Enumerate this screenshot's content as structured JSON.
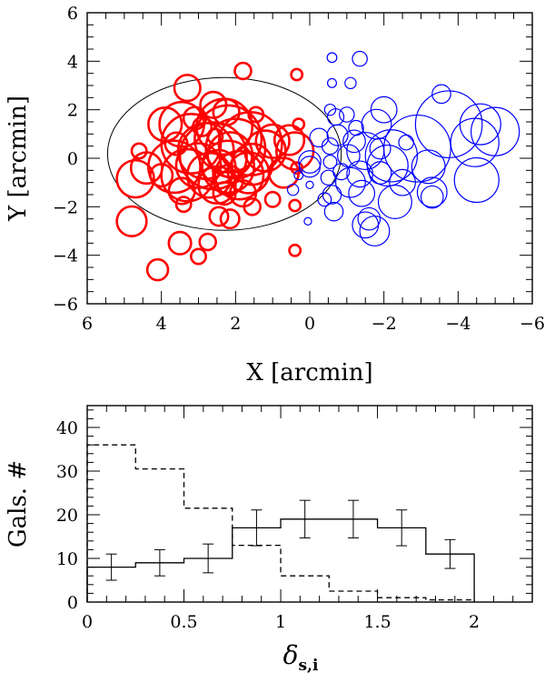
{
  "chart_data": [
    {
      "type": "scatter",
      "xlabel": "X [arcmin]",
      "ylabel": "Y [arcmin]",
      "xlim": [
        6,
        -6
      ],
      "ylim": [
        -6,
        6
      ],
      "xticks": [
        6,
        4,
        2,
        0,
        -2,
        -4,
        -6
      ],
      "yticks": [
        -6,
        -4,
        -2,
        0,
        2,
        4,
        6
      ],
      "xtick_labels": [
        "6",
        "4",
        "2",
        "0",
        "−2",
        "−4",
        "−6"
      ],
      "ytick_labels": [
        "−6",
        "−4",
        "−2",
        "0",
        "2",
        "4",
        "6"
      ],
      "reference_circle": {
        "x": 2.3,
        "y": 0.18,
        "r": 3.15
      },
      "series": [
        {
          "name": "red galaxies",
          "color": "#ff0000",
          "points": [
            [
              2.55,
              0.9,
              0.2
            ],
            [
              2.9,
              1.3,
              0.25
            ],
            [
              2.2,
              0.8,
              0.9
            ],
            [
              2.8,
              0.3,
              0.75
            ],
            [
              3.2,
              0.6,
              0.8
            ],
            [
              3.6,
              0.6,
              0.3
            ],
            [
              2.0,
              0.4,
              0.8
            ],
            [
              1.6,
              0.6,
              0.85
            ],
            [
              2.3,
              1.3,
              0.75
            ],
            [
              3.45,
              1.4,
              0.6
            ],
            [
              3.9,
              1.4,
              0.45
            ],
            [
              3.0,
              -0.3,
              0.6
            ],
            [
              2.6,
              0.1,
              0.9
            ],
            [
              3.3,
              -0.7,
              0.7
            ],
            [
              3.65,
              -0.35,
              0.7
            ],
            [
              2.7,
              -0.7,
              0.6
            ],
            [
              1.9,
              -0.7,
              0.65
            ],
            [
              1.55,
              -0.25,
              0.55
            ],
            [
              2.2,
              -0.35,
              0.7
            ],
            [
              2.5,
              -1.1,
              0.5
            ],
            [
              2.2,
              -0.9,
              0.4
            ],
            [
              1.8,
              -1.45,
              0.35
            ],
            [
              1.2,
              0.3,
              0.55
            ],
            [
              1.0,
              0.7,
              0.45
            ],
            [
              0.7,
              -0.6,
              0.4
            ],
            [
              0.4,
              0.3,
              0.5
            ],
            [
              4.0,
              -0.7,
              0.3
            ],
            [
              3.3,
              2.9,
              0.35
            ],
            [
              2.6,
              2.2,
              0.35
            ],
            [
              2.25,
              1.9,
              0.35
            ],
            [
              1.8,
              3.6,
              0.22
            ],
            [
              1.45,
              1.8,
              0.2
            ],
            [
              2.45,
              -2.4,
              0.25
            ],
            [
              2.15,
              -2.5,
              0.25
            ],
            [
              1.55,
              -2.0,
              0.22
            ],
            [
              3.4,
              -1.9,
              0.2
            ],
            [
              3.5,
              -3.5,
              0.3
            ],
            [
              2.75,
              -3.45,
              0.22
            ],
            [
              3.0,
              -4.05,
              0.2
            ],
            [
              4.1,
              -4.6,
              0.28
            ],
            [
              4.8,
              -2.6,
              0.4
            ],
            [
              4.7,
              -0.85,
              0.5
            ],
            [
              4.4,
              -0.4,
              0.42
            ],
            [
              1.0,
              -1.7,
              0.2
            ],
            [
              0.35,
              -0.4,
              0.15
            ],
            [
              0.4,
              -1.95,
              0.15
            ],
            [
              0.4,
              -3.8,
              0.15
            ],
            [
              0.35,
              3.45,
              0.15
            ],
            [
              0.3,
              1.4,
              0.15
            ],
            [
              0.55,
              0.75,
              0.4
            ],
            [
              1.65,
              -0.6,
              0.55
            ],
            [
              2.15,
              0.15,
              0.6
            ],
            [
              3.1,
              1.65,
              0.3
            ],
            [
              3.45,
              -1.35,
              0.35
            ],
            [
              2.45,
              -0.35,
              0.45
            ],
            [
              2.3,
              -1.45,
              0.3
            ],
            [
              4.6,
              0.3,
              0.2
            ]
          ]
        },
        {
          "name": "blue galaxies",
          "color": "#0000ff",
          "points": [
            [
              -0.6,
              4.15,
              0.13
            ],
            [
              -1.35,
              4.1,
              0.2
            ],
            [
              -0.6,
              3.1,
              0.12
            ],
            [
              -1.1,
              3.1,
              0.15
            ],
            [
              -3.55,
              2.65,
              0.25
            ],
            [
              -2.0,
              2.0,
              0.35
            ],
            [
              -1.8,
              1.4,
              0.4
            ],
            [
              -0.7,
              1.7,
              0.22
            ],
            [
              -1.0,
              1.8,
              0.2
            ],
            [
              -0.75,
              0.95,
              0.28
            ],
            [
              -0.25,
              0.85,
              0.25
            ],
            [
              -0.55,
              0.5,
              0.22
            ],
            [
              -1.2,
              0.7,
              0.3
            ],
            [
              -1.5,
              0.3,
              0.5
            ],
            [
              -2.2,
              0.1,
              0.7
            ],
            [
              -2.9,
              0.4,
              0.9
            ],
            [
              -3.75,
              1.4,
              0.9
            ],
            [
              -4.6,
              1.4,
              0.55
            ],
            [
              -5.0,
              1.1,
              0.65
            ],
            [
              -4.45,
              0.65,
              0.65
            ],
            [
              -4.5,
              -0.9,
              0.6
            ],
            [
              -3.2,
              -0.35,
              0.45
            ],
            [
              -3.3,
              -1.4,
              0.4
            ],
            [
              -2.5,
              -1.0,
              0.35
            ],
            [
              -2.3,
              -1.8,
              0.45
            ],
            [
              -3.3,
              -1.6,
              0.3
            ],
            [
              -1.9,
              -0.6,
              0.3
            ],
            [
              -1.35,
              -0.65,
              0.35
            ],
            [
              -1.1,
              -1.0,
              0.4
            ],
            [
              -1.4,
              -1.45,
              0.35
            ],
            [
              -1.6,
              -2.5,
              0.3
            ],
            [
              -1.5,
              -2.75,
              0.35
            ],
            [
              -1.75,
              -3.0,
              0.4
            ],
            [
              -0.65,
              -2.2,
              0.25
            ],
            [
              -0.6,
              -1.5,
              0.25
            ],
            [
              -0.5,
              -0.8,
              0.2
            ],
            [
              0.0,
              -0.15,
              0.3
            ],
            [
              0.0,
              -0.35,
              0.28
            ],
            [
              0.45,
              -1.3,
              0.15
            ],
            [
              0.3,
              -0.7,
              0.12
            ],
            [
              0.0,
              -1.1,
              0.1
            ],
            [
              0.05,
              -2.6,
              0.1
            ],
            [
              -0.4,
              -1.7,
              0.18
            ],
            [
              -2.1,
              -0.3,
              0.55
            ],
            [
              -1.9,
              0.4,
              0.28
            ],
            [
              -1.05,
              0.1,
              0.3
            ],
            [
              -0.55,
              -0.15,
              0.18
            ],
            [
              -0.85,
              -0.55,
              0.22
            ],
            [
              -2.6,
              0.65,
              0.2
            ],
            [
              -1.25,
              1.25,
              0.2
            ],
            [
              -0.55,
              2.0,
              0.15
            ]
          ]
        }
      ]
    },
    {
      "type": "histogram",
      "xlabel": "δ",
      "xlabel_sub": "s,i",
      "ylabel": "Gals. #",
      "xlim": [
        0,
        2.3
      ],
      "ylim": [
        0,
        45
      ],
      "xticks": [
        0,
        0.5,
        1,
        1.5,
        2
      ],
      "yticks": [
        0,
        10,
        20,
        30,
        40
      ],
      "xtick_labels": [
        "0",
        "0.5",
        "1",
        "1.5",
        "2"
      ],
      "ytick_labels": [
        "0",
        "10",
        "20",
        "30",
        "40"
      ],
      "bin_edges": [
        0,
        0.25,
        0.5,
        0.75,
        1.0,
        1.25,
        1.5,
        1.75,
        2.0
      ],
      "series": [
        {
          "name": "solid",
          "style": "solid",
          "values": [
            8,
            9,
            10,
            17,
            19,
            19,
            17,
            11
          ],
          "errors": [
            3,
            3,
            3.3,
            4.1,
            4.3,
            4.3,
            4.1,
            3.3
          ]
        },
        {
          "name": "dashed",
          "style": "dashed",
          "values": [
            36,
            30.5,
            21.5,
            13,
            6,
            2.5,
            1,
            0.5
          ]
        }
      ]
    }
  ]
}
